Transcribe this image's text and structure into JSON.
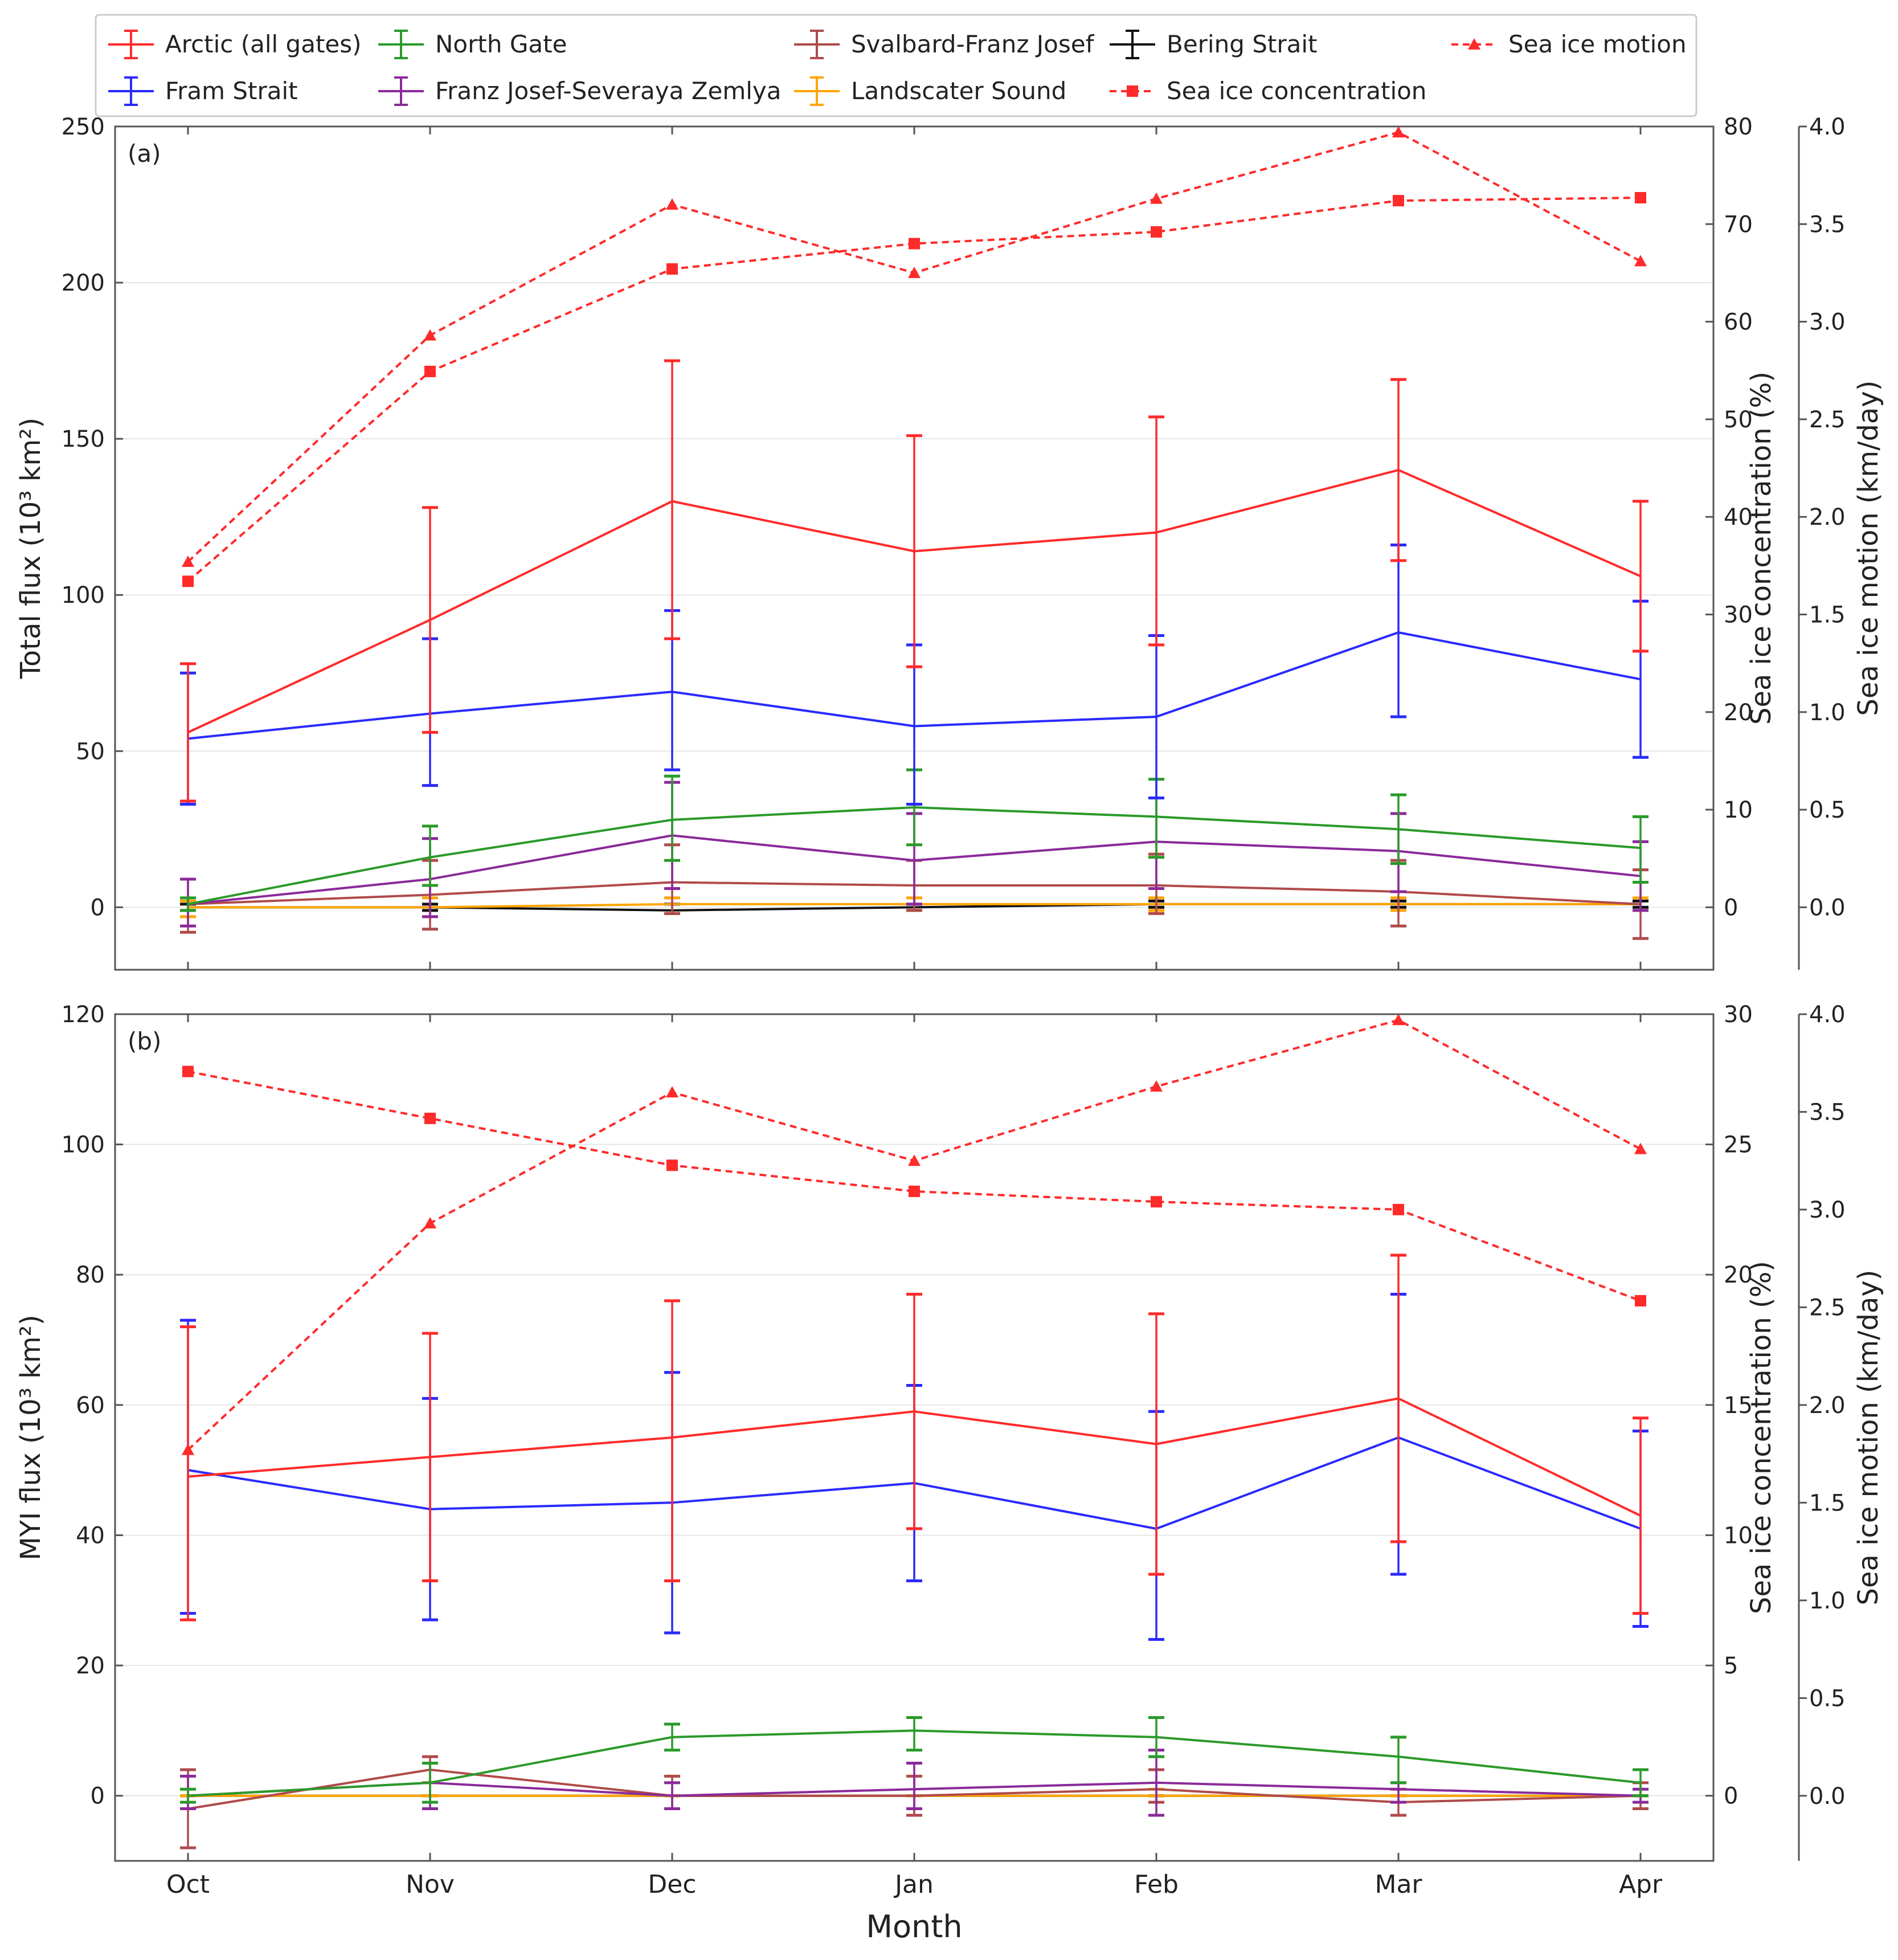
{
  "xlabel": "Month",
  "legend": {
    "items": [
      {
        "label": "Arctic (all gates)",
        "color": "#ff2a2a",
        "kind": "errorbar"
      },
      {
        "label": "North Gate",
        "color": "#2a9a2a",
        "kind": "errorbar"
      },
      {
        "label": "Svalbard-Franz Josef",
        "color": "#b04a4a",
        "kind": "errorbar"
      },
      {
        "label": "Bering Strait",
        "color": "#111111",
        "kind": "errorbar"
      },
      {
        "label": "Sea ice motion",
        "color": "#ff2a2a",
        "kind": "dash-triangle"
      },
      {
        "label": "Fram Strait",
        "color": "#2a2aff",
        "kind": "errorbar"
      },
      {
        "label": "Franz Josef-Severaya Zemlya",
        "color": "#8a2a9a",
        "kind": "errorbar"
      },
      {
        "label": "Landscater Sound",
        "color": "#ffa500",
        "kind": "errorbar"
      },
      {
        "label": "Sea ice concentration",
        "color": "#ff2a2a",
        "kind": "dash-square"
      }
    ]
  },
  "chart_data": [
    {
      "type": "line",
      "panel_label": "(a)",
      "ylabel": "Total flux (10³ km²)",
      "ylabel_right1": "Sea ice concentration (%)",
      "ylabel_right2": "Sea ice motion (km/day)",
      "ylim": [
        -20,
        250
      ],
      "yticks": [
        0,
        50,
        100,
        150,
        200,
        250
      ],
      "right1_lim": [
        -6.4,
        80
      ],
      "right1_ticks": [
        0,
        10,
        20,
        30,
        40,
        50,
        60,
        70,
        80
      ],
      "right2_lim": [
        -0.32,
        4.0
      ],
      "right2_ticks": [
        0.0,
        0.5,
        1.0,
        1.5,
        2.0,
        2.5,
        3.0,
        3.5,
        4.0
      ],
      "categories": [
        "Oct",
        "Nov",
        "Dec",
        "Jan",
        "Feb",
        "Mar",
        "Apr"
      ],
      "series": [
        {
          "name": "Arctic (all gates)",
          "color": "#ff2a2a",
          "values": [
            56,
            92,
            130,
            114,
            120,
            140,
            106
          ],
          "err_low": [
            34,
            56,
            86,
            77,
            84,
            111,
            82
          ],
          "err_high": [
            78,
            128,
            175,
            151,
            157,
            169,
            130
          ]
        },
        {
          "name": "Fram Strait",
          "color": "#2a2aff",
          "values": [
            54,
            62,
            69,
            58,
            61,
            88,
            73
          ],
          "err_low": [
            33,
            39,
            44,
            33,
            35,
            61,
            48
          ],
          "err_high": [
            75,
            86,
            95,
            84,
            87,
            116,
            98
          ]
        },
        {
          "name": "North Gate",
          "color": "#2a9a2a",
          "values": [
            1,
            16,
            28,
            32,
            29,
            25,
            19
          ],
          "err_low": [
            -1,
            7,
            15,
            20,
            16,
            14,
            8
          ],
          "err_high": [
            3,
            26,
            42,
            44,
            41,
            36,
            29
          ]
        },
        {
          "name": "Franz Josef-Severaya Zemlya",
          "color": "#8a2a9a",
          "values": [
            1,
            9,
            23,
            15,
            21,
            18,
            10
          ],
          "err_low": [
            -6,
            -3,
            6,
            1,
            6,
            5,
            -1
          ],
          "err_high": [
            9,
            22,
            40,
            30,
            35,
            30,
            21
          ]
        },
        {
          "name": "Svalbard-Franz Josef",
          "color": "#b04a4a",
          "values": [
            1,
            4,
            8,
            7,
            7,
            5,
            1
          ],
          "err_low": [
            -8,
            -7,
            -2,
            -1,
            -2,
            -6,
            -10
          ],
          "err_high": [
            9,
            15,
            20,
            15,
            17,
            15,
            12
          ]
        },
        {
          "name": "Landscater Sound",
          "color": "#ffa500",
          "values": [
            0,
            0,
            1,
            1,
            1,
            1,
            1
          ],
          "err_low": [
            -3,
            -3,
            -2,
            -1,
            -1,
            -1,
            -1
          ],
          "err_high": [
            2,
            3,
            3,
            3,
            3,
            3,
            3
          ]
        },
        {
          "name": "Bering Strait",
          "color": "#111111",
          "values": [
            0,
            0,
            -1,
            0,
            1,
            1,
            1
          ],
          "err_low": [
            -1,
            -1,
            -2,
            -1,
            0,
            0,
            0
          ],
          "err_high": [
            1,
            1,
            1,
            1,
            2,
            2,
            2
          ]
        }
      ],
      "concentration": {
        "name": "Sea ice concentration",
        "axis": "Sea ice concentration (%)",
        "values": [
          33.4,
          54.9,
          65.4,
          68.0,
          69.2,
          72.4,
          72.7
        ]
      },
      "motion": {
        "name": "Sea ice motion",
        "axis": "Sea ice motion (km/day)",
        "values": [
          1.77,
          2.93,
          3.6,
          3.25,
          3.63,
          3.97,
          3.31
        ]
      }
    },
    {
      "type": "line",
      "panel_label": "(b)",
      "ylabel": "MYI flux (10³ km²)",
      "ylabel_right1": "Sea ice concentration (%)",
      "ylabel_right2": "Sea ice motion (km/day)",
      "ylim": [
        -10,
        120
      ],
      "yticks": [
        0,
        20,
        40,
        60,
        80,
        100,
        120
      ],
      "right1_lim": [
        -2.5,
        30
      ],
      "right1_ticks": [
        0,
        5,
        10,
        15,
        20,
        25,
        30
      ],
      "right2_lim": [
        -0.333,
        4.0
      ],
      "right2_ticks": [
        0.0,
        0.5,
        1.0,
        1.5,
        2.0,
        2.5,
        3.0,
        3.5,
        4.0
      ],
      "categories": [
        "Oct",
        "Nov",
        "Dec",
        "Jan",
        "Feb",
        "Mar",
        "Apr"
      ],
      "series": [
        {
          "name": "Arctic (all gates)",
          "color": "#ff2a2a",
          "values": [
            49,
            52,
            55,
            59,
            54,
            61,
            43
          ],
          "err_low": [
            27,
            33,
            33,
            41,
            34,
            39,
            28
          ],
          "err_high": [
            72,
            71,
            76,
            77,
            74,
            83,
            58
          ]
        },
        {
          "name": "Fram Strait",
          "color": "#2a2aff",
          "values": [
            50,
            44,
            45,
            48,
            41,
            55,
            41
          ],
          "err_low": [
            28,
            27,
            25,
            33,
            24,
            34,
            26
          ],
          "err_high": [
            73,
            61,
            65,
            63,
            59,
            77,
            56
          ]
        },
        {
          "name": "North Gate",
          "color": "#2a9a2a",
          "values": [
            0,
            2,
            9,
            10,
            9,
            6,
            2
          ],
          "err_low": [
            -1,
            -1,
            7,
            7,
            6,
            2,
            0
          ],
          "err_high": [
            1,
            5,
            11,
            12,
            12,
            9,
            4
          ]
        },
        {
          "name": "Franz Josef-Severaya Zemlya",
          "color": "#8a2a9a",
          "values": [
            0,
            2,
            0,
            1,
            2,
            1,
            0
          ],
          "err_low": [
            -2,
            -2,
            -2,
            -2,
            -3,
            -1,
            -1
          ],
          "err_high": [
            3,
            5,
            2,
            5,
            7,
            2,
            1
          ]
        },
        {
          "name": "Svalbard-Franz Josef",
          "color": "#b04a4a",
          "values": [
            -2,
            4,
            0,
            0,
            1,
            -1,
            0
          ],
          "err_low": [
            -8,
            2,
            -2,
            -3,
            -1,
            -3,
            -2
          ],
          "err_high": [
            4,
            6,
            3,
            3,
            4,
            1,
            2
          ]
        },
        {
          "name": "Landscater Sound",
          "color": "#ffa500",
          "values": [
            0,
            0,
            0,
            0,
            0,
            0,
            0
          ],
          "err_low": [
            0,
            0,
            0,
            0,
            0,
            0,
            0
          ],
          "err_high": [
            0,
            0,
            0,
            0,
            1,
            0,
            0
          ]
        },
        {
          "name": "Bering Strait",
          "color": "#111111",
          "values": [
            0,
            0,
            0,
            0,
            0,
            0,
            0
          ],
          "err_low": [
            0,
            0,
            0,
            0,
            0,
            0,
            0
          ],
          "err_high": [
            0,
            0,
            0,
            0,
            0,
            0,
            0
          ]
        }
      ],
      "concentration": {
        "name": "Sea ice concentration",
        "axis": "Sea ice concentration (%)",
        "values": [
          27.8,
          26.0,
          24.2,
          23.2,
          22.8,
          22.5,
          19.0
        ]
      },
      "motion": {
        "name": "Sea ice motion",
        "axis": "Sea ice motion (km/day)",
        "values": [
          1.77,
          2.93,
          3.6,
          3.25,
          3.63,
          3.97,
          3.31
        ]
      }
    }
  ]
}
